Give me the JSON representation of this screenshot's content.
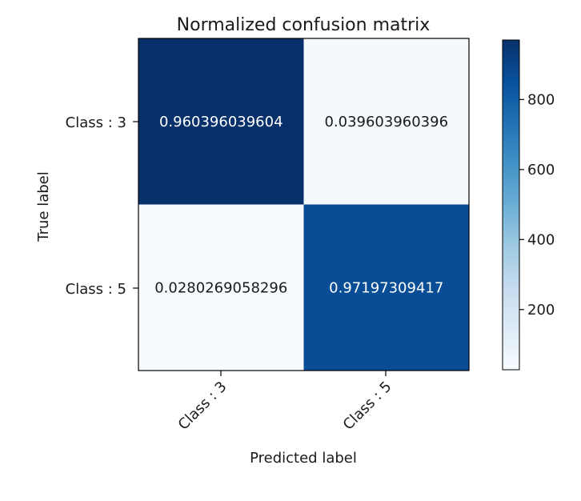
{
  "chart_data": {
    "type": "heatmap",
    "title": "Normalized confusion matrix",
    "xlabel": "Predicted label",
    "ylabel": "True label",
    "x_categories": [
      "Class : 3",
      "Class : 5"
    ],
    "y_categories": [
      "Class : 3",
      "Class : 5"
    ],
    "cell_labels": [
      [
        "0.960396039604",
        "0.039603960396"
      ],
      [
        "0.0280269058296",
        "0.97197309417"
      ]
    ],
    "color_values": [
      [
        970,
        40
      ],
      [
        28,
        867
      ]
    ],
    "colorbar": {
      "range": [
        28,
        970
      ],
      "ticks": [
        200,
        400,
        600,
        800
      ],
      "colormap": "Blues",
      "color_low": "#f7fbff",
      "color_high": "#08306b"
    },
    "x_tick_rotation_deg": 45,
    "grid": false
  }
}
